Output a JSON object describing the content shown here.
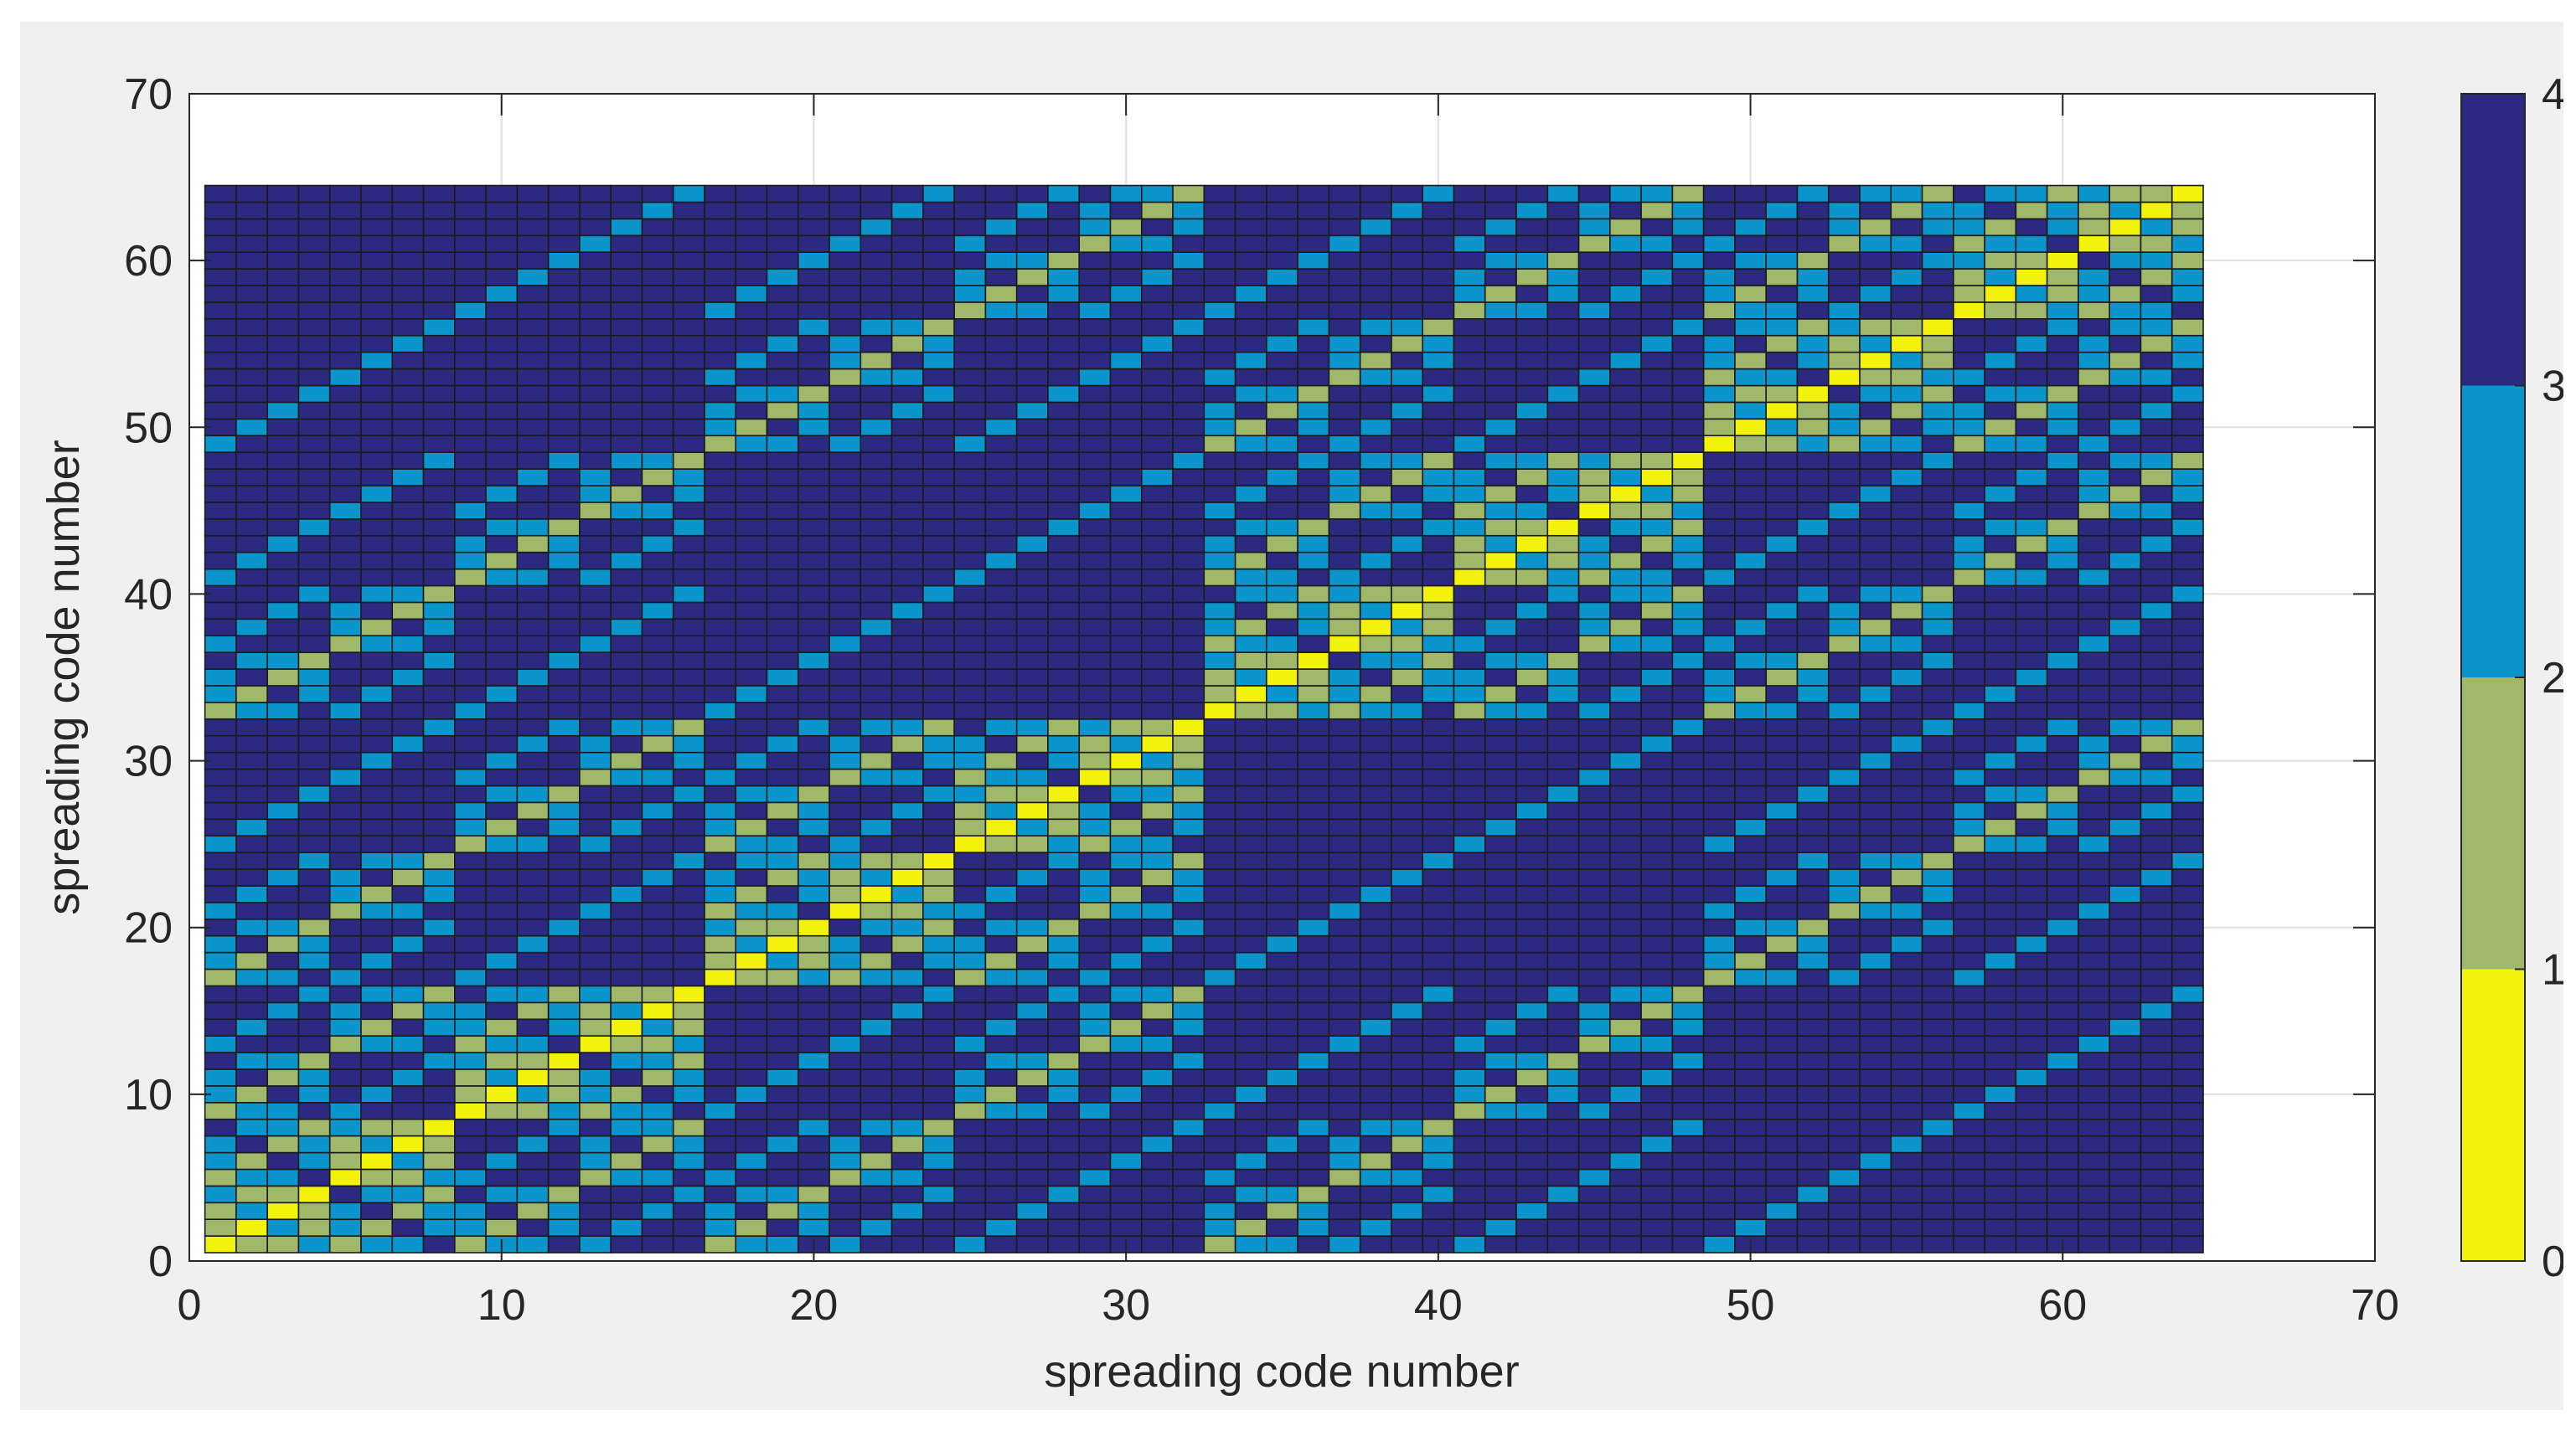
{
  "chart_data": {
    "type": "heatmap",
    "title": "",
    "xlabel": "spreading code number",
    "ylabel": "spreading code number",
    "xlim": [
      0,
      70
    ],
    "ylim": [
      0,
      70
    ],
    "xticks": [
      "0",
      "10",
      "20",
      "30",
      "40",
      "50",
      "60",
      "70"
    ],
    "yticks": [
      "0",
      "10",
      "20",
      "30",
      "40",
      "50",
      "60",
      "70"
    ],
    "grid": true,
    "n": 64,
    "cell_x_range": [
      1,
      64
    ],
    "cell_y_range": [
      1,
      64
    ],
    "value_encoding": "Each cell value = number of bit positions where the two 6-bit spreading-code indices (code number - 1) differ",
    "colorbar": {
      "limits": [
        0,
        4
      ],
      "ticks": [
        "0",
        "1",
        "2",
        "3",
        "4"
      ],
      "colors": [
        "#f2f20c",
        "#a0b86a",
        "#0a95cc",
        "#2c2a80"
      ],
      "max_value_color_index": 3
    }
  }
}
